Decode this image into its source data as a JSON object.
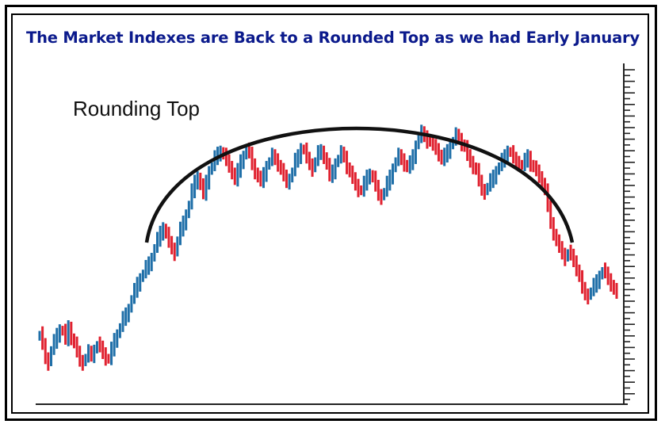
{
  "title": "The Market Indexes are Back to a Rounded Top as we had Early January",
  "annotation": "Rounding Top",
  "colors": {
    "title": "#0b1a8c",
    "up": "#1f6fa8",
    "down": "#e02230",
    "arc": "#111111",
    "axis": "#222222"
  },
  "chart_data": {
    "type": "candlestick",
    "title": "The Market Indexes are Back to a Rounded Top as we had Early January",
    "annotation": "Rounding Top",
    "xlabel": "",
    "ylabel": "",
    "ylim": [
      0,
      100
    ],
    "y_ticks": "unlabeled",
    "pattern": "rounding top",
    "close_values": [
      18,
      14,
      9,
      7,
      12,
      15,
      18,
      20,
      19,
      16,
      21,
      17,
      14,
      11,
      8,
      7,
      9,
      11,
      10,
      12,
      14,
      13,
      11,
      9,
      8,
      12,
      16,
      18,
      21,
      24,
      26,
      28,
      32,
      35,
      38,
      40,
      42,
      44,
      46,
      48,
      52,
      55,
      58,
      60,
      57,
      54,
      52,
      50,
      55,
      59,
      62,
      65,
      69,
      74,
      78,
      80,
      76,
      73,
      78,
      82,
      84,
      87,
      89,
      90,
      88,
      86,
      84,
      82,
      78,
      82,
      86,
      88,
      90,
      89,
      85,
      82,
      79,
      78,
      81,
      84,
      86,
      88,
      87,
      85,
      82,
      80,
      78,
      79,
      82,
      86,
      88,
      91,
      90,
      87,
      85,
      83,
      86,
      89,
      90,
      88,
      84,
      80,
      82,
      85,
      87,
      89,
      88,
      84,
      81,
      79,
      77,
      75,
      74,
      77,
      80,
      81,
      79,
      76,
      73,
      72,
      74,
      77,
      80,
      83,
      86,
      88,
      87,
      85,
      83,
      85,
      88,
      92,
      95,
      97,
      96,
      94,
      93,
      92,
      91,
      89,
      86,
      88,
      90,
      92,
      94,
      96,
      95,
      93,
      91,
      88,
      86,
      84,
      82,
      78,
      75,
      74,
      76,
      78,
      80,
      82,
      84,
      86,
      88,
      90,
      89,
      87,
      86,
      85,
      84,
      86,
      88,
      85,
      83,
      82,
      80,
      78,
      74,
      68,
      62,
      58,
      54,
      52,
      50,
      48,
      50,
      49,
      47,
      44,
      40,
      36,
      34,
      33,
      35,
      37,
      39,
      41,
      43,
      42,
      40,
      38,
      35,
      34
    ]
  }
}
